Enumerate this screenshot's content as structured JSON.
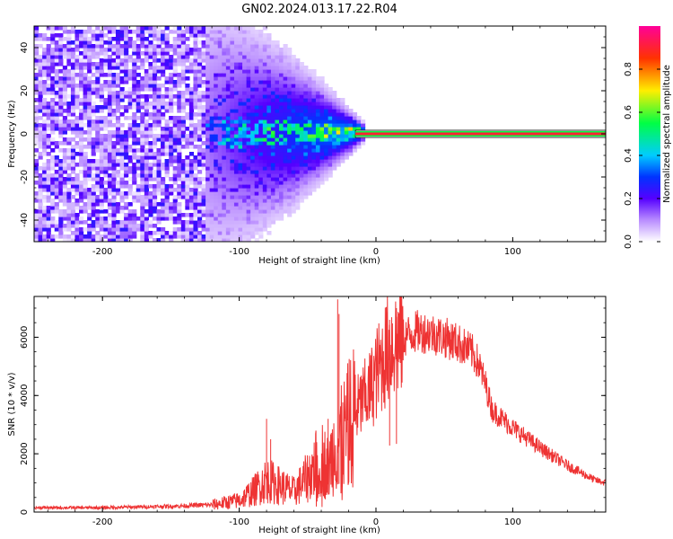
{
  "title": "GN02.2024.013.17.22.R04",
  "chart_data": [
    {
      "type": "heatmap",
      "title": "GN02.2024.013.17.22.R04",
      "xlabel": "Height of straight line (km)",
      "ylabel": "Frequency (Hz)",
      "xlim": [
        -250,
        168
      ],
      "ylim": [
        -50,
        50
      ],
      "x_ticks": [
        "-200",
        "-100",
        "0",
        "100"
      ],
      "y_ticks": [
        "-40",
        "-20",
        "0",
        "20",
        "40"
      ],
      "colorbar": {
        "label": "Normalized spectral amplitude",
        "range": [
          0,
          1
        ],
        "ticks": [
          "0.0",
          "0.2",
          "0.4",
          "0.6",
          "0.8"
        ]
      },
      "signal": {
        "center_frequency": 0,
        "tracked_from_x": -15,
        "tracked_amplitude": 0.9,
        "noise_region": [
          -250,
          -125
        ],
        "transition_region": [
          -125,
          -10
        ]
      }
    },
    {
      "type": "line",
      "xlabel": "Height of straight line (km)",
      "ylabel": "SNR (10 * v/v)",
      "xlim": [
        -250,
        168
      ],
      "ylim": [
        0,
        7400
      ],
      "x_ticks": [
        "-200",
        "-100",
        "0",
        "100"
      ],
      "y_ticks": [
        "0",
        "2000",
        "4000",
        "6000"
      ],
      "color": "#ee3333",
      "envelope": {
        "x": [
          -250,
          -200,
          -150,
          -120,
          -100,
          -90,
          -80,
          -70,
          -60,
          -50,
          -40,
          -35,
          -30,
          -25,
          -20,
          -15,
          -10,
          -5,
          0,
          10,
          20,
          30,
          40,
          50,
          60,
          70,
          75,
          80,
          85,
          90,
          100,
          120,
          140,
          160,
          168
        ],
        "y": [
          150,
          150,
          200,
          250,
          400,
          700,
          1100,
          900,
          700,
          1200,
          1900,
          1500,
          2300,
          2500,
          3000,
          3400,
          3800,
          4100,
          4700,
          5700,
          6000,
          6200,
          6150,
          6000,
          5800,
          5500,
          5100,
          4400,
          3500,
          3300,
          2900,
          2200,
          1600,
          1100,
          1000
        ]
      },
      "spikes": [
        {
          "x": -77,
          "y": 2500
        },
        {
          "x": -80,
          "y": 3200
        },
        {
          "x": -35,
          "y": 3200
        },
        {
          "x": -28,
          "y": 7300
        },
        {
          "x": -27,
          "y": 6800
        },
        {
          "x": 10,
          "y": 6600
        },
        {
          "x": 15,
          "y": 7000
        }
      ]
    }
  ]
}
